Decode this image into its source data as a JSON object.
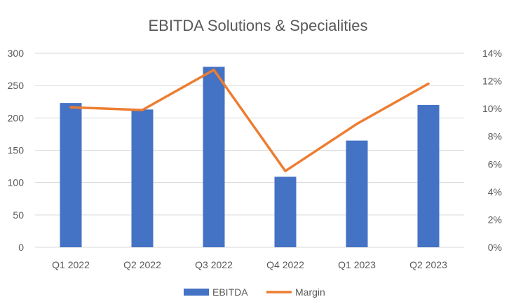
{
  "chart_data": {
    "type": "bar",
    "title": "EBITDA Solutions & Specialities",
    "categories": [
      "Q1 2022",
      "Q2 2022",
      "Q3 2022",
      "Q4 2022",
      "Q1 2023",
      "Q2 2023"
    ],
    "series": [
      {
        "name": "EBITDA",
        "type": "bar",
        "axis": "left",
        "color": "#4472C4",
        "values": [
          223,
          213,
          279,
          109,
          165,
          220
        ]
      },
      {
        "name": "Margin",
        "type": "line",
        "axis": "right",
        "color": "#ED7D31",
        "values": [
          10.1,
          9.9,
          12.8,
          5.5,
          8.9,
          11.8
        ]
      }
    ],
    "y_left": {
      "min": 0,
      "max": 300,
      "ticks": [
        0,
        50,
        100,
        150,
        200,
        250,
        300
      ],
      "tick_labels": [
        "0",
        "50",
        "100",
        "150",
        "200",
        "250",
        "300"
      ]
    },
    "y_right": {
      "min": 0,
      "max": 14,
      "ticks": [
        0,
        2,
        4,
        6,
        8,
        10,
        12,
        14
      ],
      "tick_labels": [
        "0%",
        "2%",
        "4%",
        "6%",
        "8%",
        "10%",
        "12%",
        "14%"
      ]
    },
    "grid": true,
    "grid_color": "#D9D9D9",
    "legend_position": "bottom",
    "xlabel": "",
    "ylabel": ""
  }
}
